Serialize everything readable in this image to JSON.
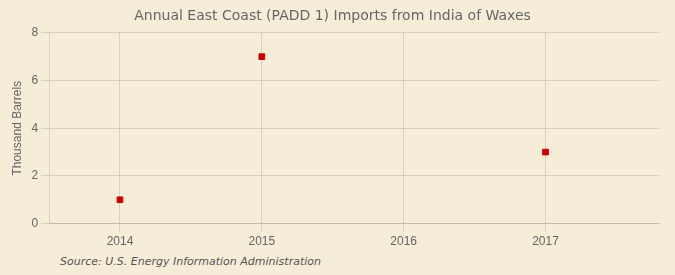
{
  "chart_data": {
    "type": "scatter",
    "title": "Annual East Coast (PADD 1) Imports from India of Waxes",
    "ylabel": "Thousand Barrels",
    "annotation": "Source: U.S. Energy Information Administration",
    "x": [
      2014,
      2015,
      2017
    ],
    "values": [
      1,
      7,
      3
    ],
    "color": "#cc0000",
    "marker": "square",
    "xlim": [
      2013.5,
      2017.8
    ],
    "xticks": [
      2014,
      2015,
      2016,
      2017
    ],
    "ylim": [
      0,
      8
    ],
    "yticks": [
      0,
      2,
      4,
      6,
      8
    ],
    "grid": true
  }
}
